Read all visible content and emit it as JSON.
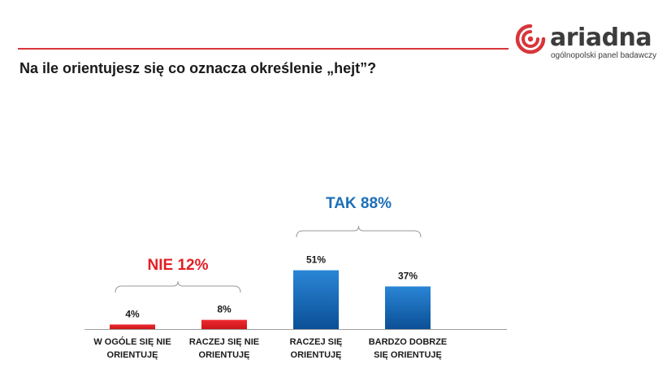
{
  "header": {
    "title": "Na ile orientujesz się co oznacza określenie „hejt”?",
    "brand_name": "ariadna",
    "brand_tagline": "ogólnopolski panel badawczy"
  },
  "colors": {
    "accent": "#d8353a",
    "negative": "#e31e24",
    "positive": "#1b6fb8"
  },
  "chart_data": {
    "type": "bar",
    "categories": [
      "W OGÓLE SIĘ NIE ORIENTUJĘ",
      "RACZEJ SIĘ NIE ORIENTUJĘ",
      "RACZEJ SIĘ ORIENTUJĘ",
      "BARDZO DOBRZE SIĘ ORIENTUJĘ"
    ],
    "category_lines": [
      [
        "W OGÓLE SIĘ NIE",
        "ORIENTUJĘ"
      ],
      [
        "RACZEJ SIĘ NIE",
        "ORIENTUJĘ"
      ],
      [
        "RACZEJ SIĘ",
        "ORIENTUJĘ"
      ],
      [
        "BARDZO DOBRZE",
        "SIĘ ORIENTUJĘ"
      ]
    ],
    "values": [
      4,
      8,
      51,
      37
    ],
    "value_labels": [
      "4%",
      "8%",
      "51%",
      "37%"
    ],
    "bar_colors": [
      "#e31e24",
      "#e31e24",
      "#1b6fb8",
      "#1b6fb8"
    ],
    "groups": [
      {
        "label": "NIE 12%",
        "value": 12,
        "members": [
          0,
          1
        ],
        "color": "#e31e24"
      },
      {
        "label": "TAK 88%",
        "value": 88,
        "members": [
          2,
          3
        ],
        "color": "#1b6fb8"
      }
    ],
    "ylim": [
      0,
      100
    ],
    "grid": false,
    "legend": "none"
  }
}
